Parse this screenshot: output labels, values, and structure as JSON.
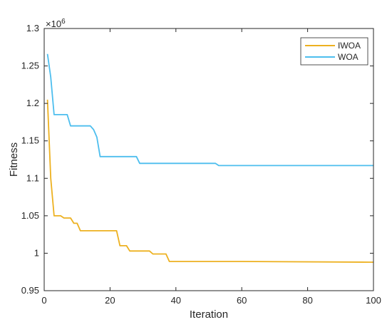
{
  "chart_data": {
    "type": "line",
    "title": "",
    "xlabel": "Iteration",
    "ylabel": "Fitness",
    "xlim": [
      0,
      100
    ],
    "ylim": [
      0.95,
      1.3
    ],
    "y_multiplier": "×10",
    "y_multiplier_exp": "6",
    "x_ticks": [
      0,
      20,
      40,
      60,
      80,
      100
    ],
    "x_tick_labels": [
      "0",
      "20",
      "40",
      "60",
      "80",
      "100"
    ],
    "y_ticks": [
      0.95,
      1,
      1.05,
      1.1,
      1.15,
      1.2,
      1.25,
      1.3
    ],
    "y_tick_labels": [
      "0.95",
      "1",
      "1.05",
      "1.1",
      "1.15",
      "1.2",
      "1.25",
      "1.3"
    ],
    "grid": false,
    "legend_position": "top-right",
    "series": [
      {
        "name": "IWOA",
        "color": "#EDB120",
        "x": [
          1,
          2,
          3,
          4,
          5,
          6,
          7,
          8,
          9,
          10,
          11,
          12,
          20,
          22,
          23,
          25,
          26,
          32,
          33,
          36,
          37,
          38,
          60,
          99,
          100
        ],
        "y": [
          1.205,
          1.1,
          1.05,
          1.05,
          1.05,
          1.047,
          1.047,
          1.047,
          1.04,
          1.04,
          1.03,
          1.03,
          1.03,
          1.03,
          1.01,
          1.01,
          1.003,
          1.003,
          0.999,
          0.999,
          0.999,
          0.989,
          0.989,
          0.988,
          0.988
        ]
      },
      {
        "name": "WOA",
        "color": "#4DBEEE",
        "x": [
          1,
          2,
          3,
          4,
          7,
          8,
          14,
          15,
          16,
          17,
          28,
          29,
          52,
          53,
          100
        ],
        "y": [
          1.266,
          1.235,
          1.185,
          1.185,
          1.185,
          1.17,
          1.17,
          1.165,
          1.155,
          1.129,
          1.129,
          1.12,
          1.12,
          1.117,
          1.117
        ]
      }
    ]
  }
}
